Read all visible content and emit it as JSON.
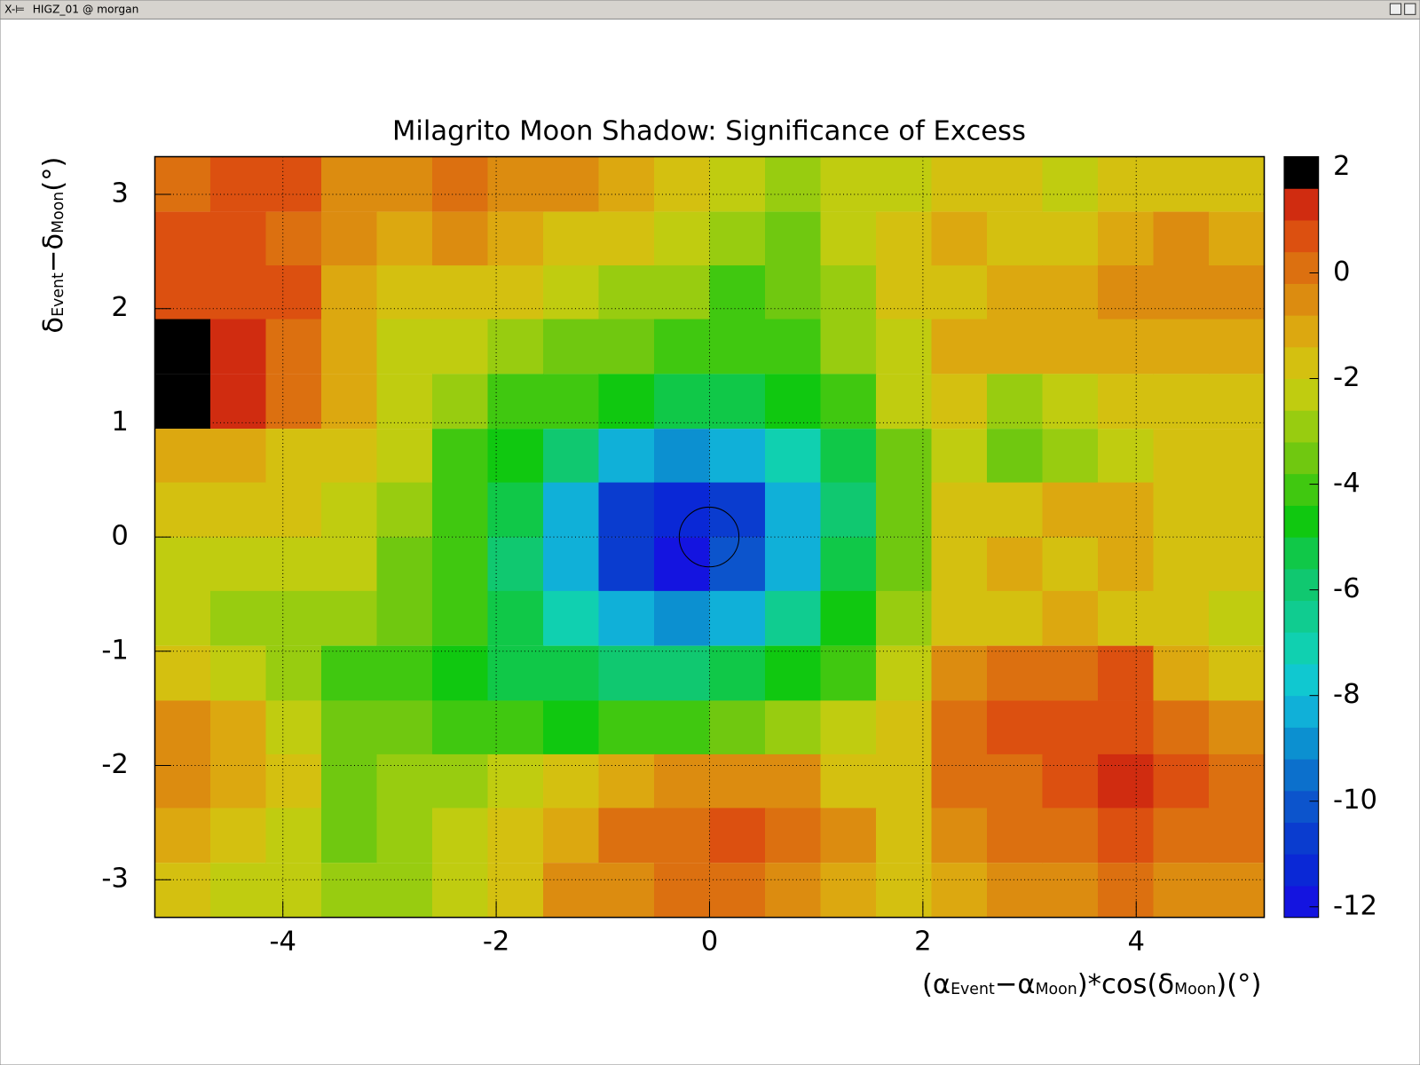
{
  "window": {
    "title": "HIGZ_01 @ morgan"
  },
  "chart_data": {
    "type": "heatmap",
    "title": "Milagrito Moon Shadow: Significance of Excess",
    "xlabel": [
      "(α",
      "Event",
      "−α",
      "Moon",
      ")*cos(δ",
      "Moon",
      ")(°)"
    ],
    "ylabel": [
      "δ",
      "Event",
      "−δ",
      "Moon",
      "(°)"
    ],
    "x": [
      -4.94,
      -4.42,
      -3.9,
      -3.38,
      -2.86,
      -2.34,
      -1.82,
      -1.3,
      -0.78,
      -0.26,
      0.26,
      0.78,
      1.3,
      1.82,
      2.34,
      2.86,
      3.38,
      3.9,
      4.42,
      4.94
    ],
    "y": [
      3.09,
      2.61,
      2.14,
      1.67,
      1.19,
      0.71,
      0.24,
      -0.24,
      -0.71,
      -1.19,
      -1.67,
      -2.14,
      -2.61,
      -3.09
    ],
    "z": [
      [
        0.3,
        0.5,
        0.6,
        -0.5,
        -0.8,
        0.2,
        -0.7,
        -0.6,
        -1.2,
        -2.0,
        -2.6,
        -2.8,
        -2.5,
        -2.2,
        -1.8,
        -2.0,
        -2.2,
        -2.0,
        -1.6,
        -1.8
      ],
      [
        0.6,
        0.4,
        -0.2,
        -0.8,
        -1.0,
        -0.6,
        -1.0,
        -1.5,
        -1.8,
        -2.6,
        -3.1,
        -3.3,
        -2.6,
        -2.0,
        -1.4,
        -1.6,
        -1.8,
        -1.2,
        -0.8,
        -1.0
      ],
      [
        0.8,
        0.9,
        0.5,
        -1.0,
        -1.9,
        -1.6,
        -1.8,
        -2.4,
        -2.7,
        -3.2,
        -3.8,
        -3.6,
        -2.8,
        -2.0,
        -1.5,
        -1.4,
        -1.2,
        -0.6,
        -0.3,
        -0.6
      ],
      [
        1.8,
        1.0,
        0.3,
        -1.2,
        -2.2,
        -2.6,
        -3.0,
        -3.4,
        -3.6,
        -4.0,
        -4.3,
        -3.8,
        -3.0,
        -2.4,
        -1.2,
        -1.0,
        -1.4,
        -1.2,
        -0.9,
        -1.0
      ],
      [
        2.0,
        1.5,
        0.2,
        -1.2,
        -2.2,
        -3.2,
        -3.8,
        -4.4,
        -5.0,
        -5.3,
        -5.4,
        -4.8,
        -4.0,
        -2.6,
        -2.0,
        -2.8,
        -2.6,
        -2.0,
        -1.8,
        -2.0
      ],
      [
        -1.0,
        -1.2,
        -1.5,
        -1.8,
        -2.6,
        -3.8,
        -4.8,
        -6.2,
        -8.0,
        -8.8,
        -8.4,
        -7.0,
        -5.2,
        -3.4,
        -2.3,
        -3.4,
        -3.2,
        -2.2,
        -1.6,
        -1.8
      ],
      [
        -1.6,
        -1.8,
        -2.0,
        -2.2,
        -3.0,
        -4.2,
        -5.6,
        -8.0,
        -10.6,
        -11.4,
        -10.6,
        -8.2,
        -5.8,
        -3.6,
        -1.8,
        -1.6,
        -1.4,
        -1.2,
        -1.8,
        -2.0
      ],
      [
        -2.2,
        -2.4,
        -2.6,
        -2.4,
        -3.4,
        -4.4,
        -5.8,
        -8.2,
        -10.8,
        -11.6,
        -10.2,
        -8.0,
        -5.6,
        -3.4,
        -1.8,
        -1.4,
        -1.6,
        -1.4,
        -1.8,
        -2.0
      ],
      [
        -2.6,
        -2.8,
        -3.0,
        -3.0,
        -3.6,
        -4.2,
        -5.4,
        -7.0,
        -8.6,
        -8.8,
        -8.2,
        -6.6,
        -4.8,
        -3.0,
        -1.8,
        -1.6,
        -1.2,
        -1.6,
        -2.0,
        -2.2
      ],
      [
        -2.0,
        -2.6,
        -3.2,
        -3.8,
        -4.0,
        -4.6,
        -5.2,
        -5.6,
        -6.0,
        -6.0,
        -5.6,
        -5.0,
        -4.2,
        -2.6,
        -0.6,
        0.0,
        0.2,
        0.4,
        -1.2,
        -1.6
      ],
      [
        -0.8,
        -1.4,
        -2.2,
        -3.4,
        -3.6,
        -3.8,
        -4.2,
        -4.6,
        -4.4,
        -4.0,
        -3.6,
        -3.2,
        -2.6,
        -1.8,
        -0.2,
        0.4,
        0.8,
        0.9,
        0.0,
        -0.6
      ],
      [
        -0.6,
        -1.0,
        -1.6,
        -3.4,
        -3.0,
        -2.8,
        -2.2,
        -1.8,
        -1.2,
        -0.8,
        -0.6,
        -0.8,
        -1.6,
        -1.6,
        -0.2,
        0.2,
        0.6,
        1.0,
        0.4,
        0.0
      ],
      [
        -1.0,
        -1.6,
        -2.2,
        -3.6,
        -2.8,
        -2.6,
        -1.8,
        -1.0,
        -0.2,
        0.2,
        0.5,
        0.3,
        -0.8,
        -1.6,
        -0.8,
        -0.2,
        0.3,
        0.4,
        0.2,
        -0.2
      ],
      [
        -1.8,
        -2.2,
        -2.6,
        -3.2,
        -2.8,
        -2.4,
        -1.6,
        -0.8,
        -0.4,
        -0.2,
        0.0,
        -0.4,
        -1.2,
        -1.8,
        -1.2,
        -0.8,
        -0.6,
        -0.2,
        -0.4,
        -0.8
      ]
    ],
    "xlim": [
      -5.2,
      5.2
    ],
    "xticks": [
      -4,
      -2,
      0,
      2,
      4
    ],
    "ylim": [
      -3.33,
      3.33
    ],
    "yticks": [
      -3,
      -2,
      -1,
      0,
      1,
      2,
      3
    ],
    "zlim": [
      -12.2,
      2.2
    ],
    "zticks": [
      2,
      0,
      -2,
      -4,
      -6,
      -8,
      -10,
      -12
    ],
    "palette": [
      "#1414e0",
      "#0a28d6",
      "#0a3ccf",
      "#0c54cc",
      "#0c70cc",
      "#0c90d0",
      "#10b0d8",
      "#10c8d0",
      "#10d0b0",
      "#10cc90",
      "#10c870",
      "#10c848",
      "#10c810",
      "#40c810",
      "#70c810",
      "#98cc10",
      "#c0cc10",
      "#d4c010",
      "#dca810",
      "#dc8c10",
      "#dc7010",
      "#dc5010",
      "#d02c10",
      "#000000"
    ],
    "grid": true
  }
}
